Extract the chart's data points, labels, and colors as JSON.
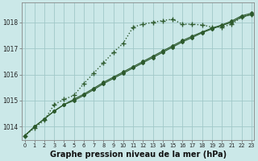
{
  "bg_color": "#cbe8e8",
  "line_color": "#2d5a2d",
  "grid_color": "#a0c8c8",
  "title": "Graphe pression niveau de la mer (hPa)",
  "title_fontsize": 7.0,
  "ylim": [
    1013.5,
    1018.75
  ],
  "xlim": [
    -0.3,
    23.3
  ],
  "yticks": [
    1014,
    1015,
    1016,
    1017,
    1018
  ],
  "xticks": [
    0,
    1,
    2,
    3,
    4,
    5,
    6,
    7,
    8,
    9,
    10,
    11,
    12,
    13,
    14,
    15,
    16,
    17,
    18,
    19,
    20,
    21,
    22,
    23
  ],
  "series1_steep": [
    1013.65,
    1013.95,
    1014.25,
    1014.85,
    1015.05,
    1015.2,
    1015.65,
    1016.05,
    1016.45,
    1016.85,
    1017.2,
    1017.82,
    1017.93,
    1018.0,
    1018.07,
    1018.12,
    1017.93,
    1017.93,
    1017.9,
    1017.82,
    1017.82,
    1017.93,
    1018.2,
    1018.3
  ],
  "series2_low": [
    1013.65,
    1014.0,
    1014.3,
    1014.6,
    1014.85,
    1015.0,
    1015.2,
    1015.42,
    1015.65,
    1015.85,
    1016.05,
    1016.25,
    1016.45,
    1016.65,
    1016.85,
    1017.05,
    1017.25,
    1017.42,
    1017.6,
    1017.75,
    1017.88,
    1018.0,
    1018.2,
    1018.3
  ],
  "series3_low": [
    1013.65,
    1014.0,
    1014.3,
    1014.6,
    1014.85,
    1015.05,
    1015.25,
    1015.47,
    1015.7,
    1015.9,
    1016.1,
    1016.3,
    1016.5,
    1016.7,
    1016.9,
    1017.1,
    1017.3,
    1017.47,
    1017.63,
    1017.78,
    1017.9,
    1018.05,
    1018.25,
    1018.35
  ]
}
